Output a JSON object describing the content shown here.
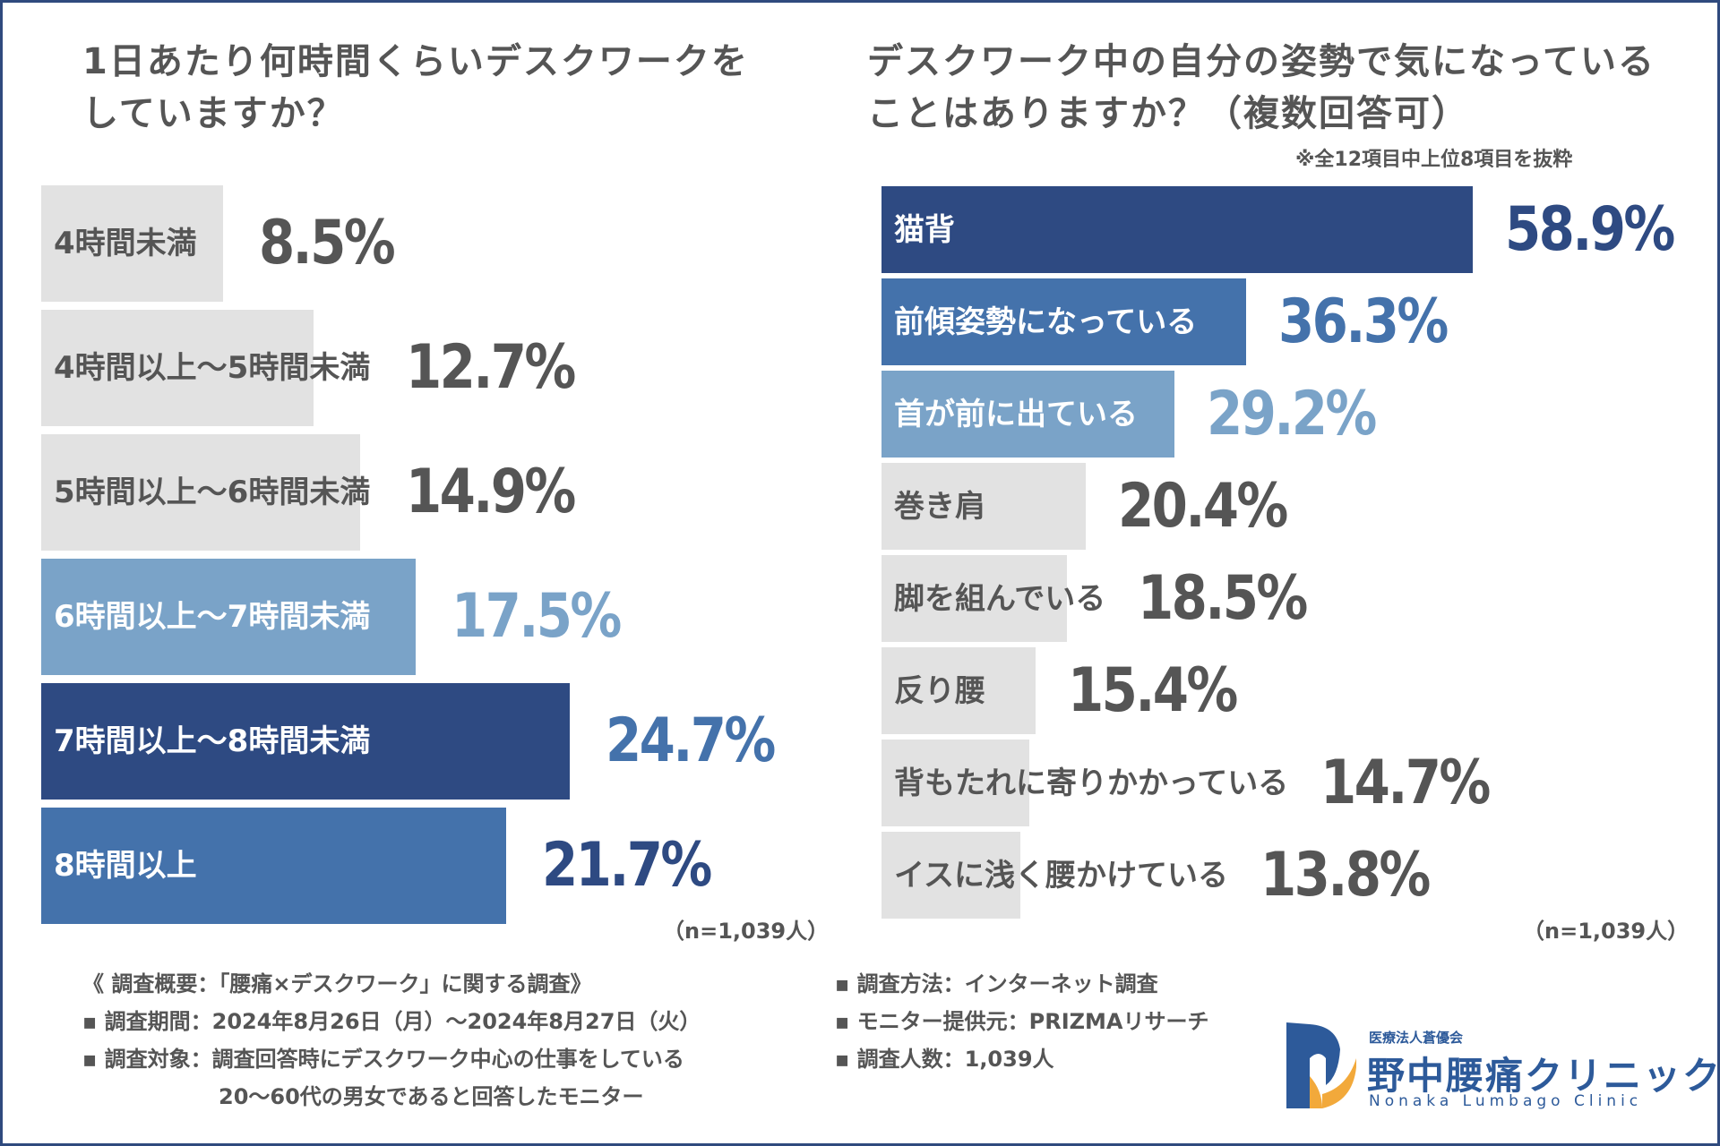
{
  "colors": {
    "gray": "#e2e2e2",
    "light": "#7aa3c8",
    "mid": "#4472ab",
    "dark": "#2e4a82",
    "text": "#555555"
  },
  "chart_data": [
    {
      "type": "bar",
      "orientation": "horizontal",
      "title": "1日あたり何時間くらいデスクワークをしていますか？",
      "title_lines": [
        "1日あたり何時間くらいデスクワークを",
        "していますか？"
      ],
      "categories": [
        "4時間未満",
        "4時間以上～5時間未満",
        "5時間以上～6時間未満",
        "6時間以上～7時間未満",
        "7時間以上～8時間未満",
        "8時間以上"
      ],
      "values": [
        8.5,
        12.7,
        14.9,
        17.5,
        24.7,
        21.7
      ],
      "value_labels": [
        "8.5%",
        "12.7%",
        "14.9%",
        "17.5%",
        "24.7%",
        "21.7%"
      ],
      "styles": [
        "gray",
        "gray",
        "gray",
        "light",
        "dark",
        "mid"
      ],
      "n": "（n=1,039人）"
    },
    {
      "type": "bar",
      "orientation": "horizontal",
      "title": "デスクワーク中の自分の姿勢で気になっていることはありますか？（複数回答可）",
      "title_lines": [
        "デスクワーク中の自分の姿勢で気になっている",
        "ことはありますか？（複数回答可）"
      ],
      "note": "※全12項目中上位8項目を抜粋",
      "categories": [
        "猫背",
        "前傾姿勢になっている",
        "首が前に出ている",
        "巻き肩",
        "脚を組んでいる",
        "反り腰",
        "背もたれに寄りかかっている",
        "イスに浅く腰かけている"
      ],
      "values": [
        58.9,
        36.3,
        29.2,
        20.4,
        18.5,
        15.4,
        14.7,
        13.8
      ],
      "value_labels": [
        "58.9%",
        "36.3%",
        "29.2%",
        "20.4%",
        "18.5%",
        "15.4%",
        "14.7%",
        "13.8%"
      ],
      "styles": [
        "dark",
        "mid",
        "light",
        "gray",
        "gray",
        "gray",
        "gray",
        "gray"
      ],
      "n": "（n=1,039人）"
    }
  ],
  "footer": {
    "left": [
      "《 調査概要：「腰痛×デスクワーク」に関する調査》",
      "▪ 調査期間：2024年8月26日（月）～2024年8月27日（火）",
      "▪ 調査対象：調査回答時にデスクワーク中心の仕事をしている",
      "20～60代の男女であると回答したモニター"
    ],
    "right": [
      "▪ 調査方法：インターネット調査",
      "▪ モニター提供元：PRIZMAリサーチ",
      "▪ 調査人数：1,039人"
    ]
  },
  "logo": {
    "sub": "医療法人蒼優会",
    "main": "野中腰痛クリニック",
    "en": "Nonaka Lumbago Clinic"
  }
}
